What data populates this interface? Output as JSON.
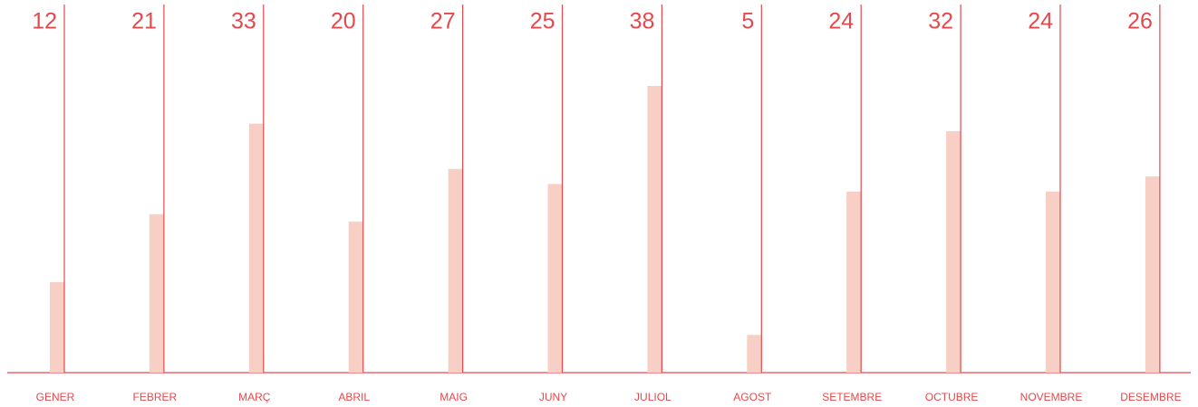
{
  "chart_data": {
    "type": "bar",
    "categories": [
      "GENER",
      "FEBRER",
      "MARÇ",
      "ABRIL",
      "MAIG",
      "JUNY",
      "JULIOL",
      "AGOST",
      "SETEMBRE",
      "OCTUBRE",
      "NOVEMBRE",
      "DESEMBRE"
    ],
    "values": [
      12,
      21,
      33,
      20,
      27,
      25,
      38,
      5,
      24,
      32,
      24,
      26
    ],
    "color": "#f8cfc4"
  }
}
